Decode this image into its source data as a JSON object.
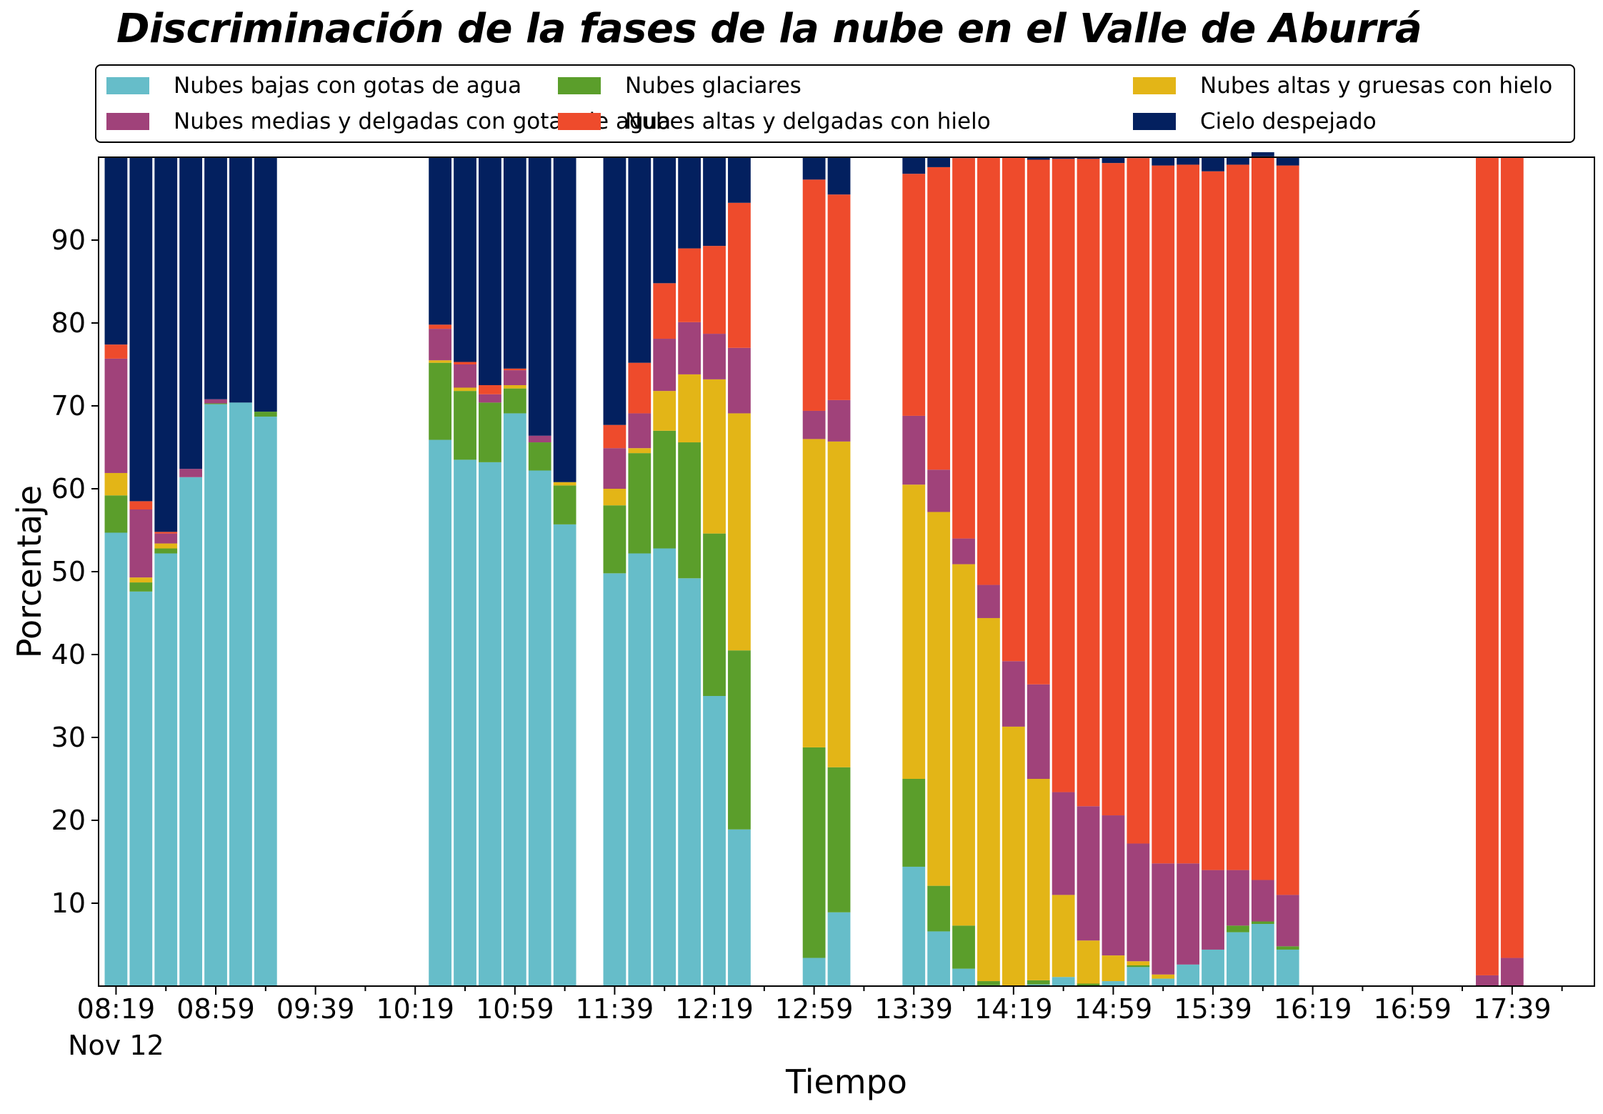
{
  "chart_data": {
    "type": "bar",
    "stacked": true,
    "title": "Discriminación de la fases de la nube en el Valle de Aburrá",
    "xlabel": "Tiempo",
    "ylabel": "Porcentaje",
    "ylim": [
      0,
      100
    ],
    "yticks": [
      10,
      20,
      30,
      40,
      50,
      60,
      70,
      80,
      90
    ],
    "xlim": [
      "08:12",
      "18:12"
    ],
    "date_label": "Nov 12",
    "xtick_labels": [
      "08:19",
      "08:59",
      "09:39",
      "10:19",
      "10:59",
      "11:39",
      "12:19",
      "12:59",
      "13:39",
      "14:19",
      "14:59",
      "15:39",
      "16:19",
      "16:59",
      "17:39"
    ],
    "legend_position": "top",
    "grid": false,
    "series": [
      {
        "name": "Nubes bajas con gotas de agua",
        "color": "#66bdc9"
      },
      {
        "name": "Nubes glaciares",
        "color": "#5b9e2b"
      },
      {
        "name": "Nubes altas y gruesas con hielo",
        "color": "#e3b517"
      },
      {
        "name": "Nubes medias y delgadas con gotas de agua",
        "color": "#a0427a"
      },
      {
        "name": "Nubes altas y delgadas con hielo",
        "color": "#ee4b2c"
      },
      {
        "name": "Cielo despejado",
        "color": "#03205f"
      }
    ],
    "bars": [
      {
        "time": "08:19",
        "values": [
          54.7,
          4.5,
          2.7,
          13.8,
          1.7,
          22.6
        ]
      },
      {
        "time": "08:29",
        "values": [
          47.6,
          1.1,
          0.6,
          8.2,
          1.0,
          41.5
        ]
      },
      {
        "time": "08:39",
        "values": [
          52.2,
          0.6,
          0.6,
          1.2,
          0.2,
          45.2
        ]
      },
      {
        "time": "08:49",
        "values": [
          61.4,
          0.0,
          0.0,
          1.0,
          0.0,
          37.6
        ]
      },
      {
        "time": "08:59",
        "values": [
          70.2,
          0.1,
          0.0,
          0.5,
          0.0,
          29.2
        ]
      },
      {
        "time": "09:09",
        "values": [
          70.4,
          0.0,
          0.0,
          0.0,
          0.0,
          29.6
        ]
      },
      {
        "time": "09:19",
        "values": [
          68.7,
          0.6,
          0.0,
          0.0,
          0.0,
          30.7
        ]
      },
      {
        "time": "10:29",
        "values": [
          65.9,
          9.3,
          0.3,
          3.8,
          0.5,
          20.2
        ]
      },
      {
        "time": "10:39",
        "values": [
          63.5,
          8.3,
          0.4,
          2.8,
          0.3,
          24.7
        ]
      },
      {
        "time": "10:49",
        "values": [
          63.2,
          7.2,
          0.0,
          1.0,
          1.1,
          27.5
        ]
      },
      {
        "time": "10:59",
        "values": [
          69.1,
          3.0,
          0.4,
          1.8,
          0.2,
          25.5
        ]
      },
      {
        "time": "11:09",
        "values": [
          62.2,
          3.4,
          0.0,
          0.8,
          0.0,
          33.6
        ]
      },
      {
        "time": "11:19",
        "values": [
          55.7,
          4.7,
          0.4,
          0.0,
          0.0,
          39.2
        ]
      },
      {
        "time": "11:39",
        "values": [
          49.8,
          8.2,
          2.0,
          4.9,
          2.8,
          32.3
        ]
      },
      {
        "time": "11:49",
        "values": [
          52.2,
          12.1,
          0.6,
          4.2,
          6.1,
          24.8
        ]
      },
      {
        "time": "11:59",
        "values": [
          52.8,
          14.2,
          4.8,
          6.3,
          6.7,
          15.2
        ]
      },
      {
        "time": "12:09",
        "values": [
          49.2,
          16.4,
          8.2,
          6.3,
          8.9,
          11.0
        ]
      },
      {
        "time": "12:19",
        "values": [
          35.0,
          19.6,
          18.6,
          5.5,
          10.6,
          10.7
        ]
      },
      {
        "time": "12:29",
        "values": [
          18.9,
          21.6,
          28.6,
          7.9,
          17.5,
          5.5
        ]
      },
      {
        "time": "12:59",
        "values": [
          3.4,
          25.4,
          37.2,
          3.4,
          27.9,
          2.7
        ]
      },
      {
        "time": "13:09",
        "values": [
          8.9,
          17.5,
          39.3,
          5.0,
          24.8,
          4.5
        ]
      },
      {
        "time": "13:39",
        "values": [
          14.4,
          10.6,
          35.5,
          8.3,
          29.2,
          2.0
        ]
      },
      {
        "time": "13:49",
        "values": [
          6.6,
          5.5,
          45.1,
          5.1,
          36.5,
          1.2
        ]
      },
      {
        "time": "13:59",
        "values": [
          2.1,
          5.2,
          43.6,
          3.1,
          45.9,
          0.1
        ]
      },
      {
        "time": "14:09",
        "values": [
          0.1,
          0.5,
          43.8,
          4.0,
          51.6,
          0.0
        ]
      },
      {
        "time": "14:19",
        "values": [
          0.0,
          0.0,
          31.3,
          7.9,
          60.8,
          0.0
        ]
      },
      {
        "time": "14:29",
        "values": [
          0.2,
          0.5,
          24.3,
          11.4,
          63.3,
          0.3
        ]
      },
      {
        "time": "14:39",
        "values": [
          1.1,
          0.0,
          9.9,
          12.4,
          76.4,
          0.2
        ]
      },
      {
        "time": "14:49",
        "values": [
          0.0,
          0.3,
          5.2,
          16.2,
          78.1,
          0.2
        ]
      },
      {
        "time": "14:59",
        "values": [
          0.6,
          0.0,
          3.1,
          16.9,
          78.7,
          0.7
        ]
      },
      {
        "time": "15:09",
        "values": [
          2.3,
          0.2,
          0.5,
          14.2,
          82.7,
          0.1
        ]
      },
      {
        "time": "15:19",
        "values": [
          0.9,
          0.0,
          0.5,
          13.4,
          84.2,
          1.0
        ]
      },
      {
        "time": "15:29",
        "values": [
          2.6,
          0.0,
          0.0,
          12.2,
          84.3,
          0.9
        ]
      },
      {
        "time": "15:39",
        "values": [
          4.4,
          0.0,
          0.0,
          9.6,
          84.3,
          1.7
        ]
      },
      {
        "time": "15:49",
        "values": [
          6.5,
          0.8,
          0.0,
          6.7,
          85.1,
          0.9
        ]
      },
      {
        "time": "15:59",
        "values": [
          7.5,
          0.3,
          0.0,
          5.0,
          87.3,
          0.5
        ]
      },
      {
        "time": "16:09",
        "values": [
          4.4,
          0.4,
          0.0,
          6.2,
          88.0,
          1.0
        ]
      },
      {
        "time": "17:29",
        "values": [
          0.0,
          0.0,
          0.0,
          1.3,
          98.7,
          0.0
        ]
      },
      {
        "time": "17:39",
        "values": [
          0.0,
          0.0,
          0.0,
          3.4,
          96.6,
          0.0
        ]
      }
    ]
  }
}
